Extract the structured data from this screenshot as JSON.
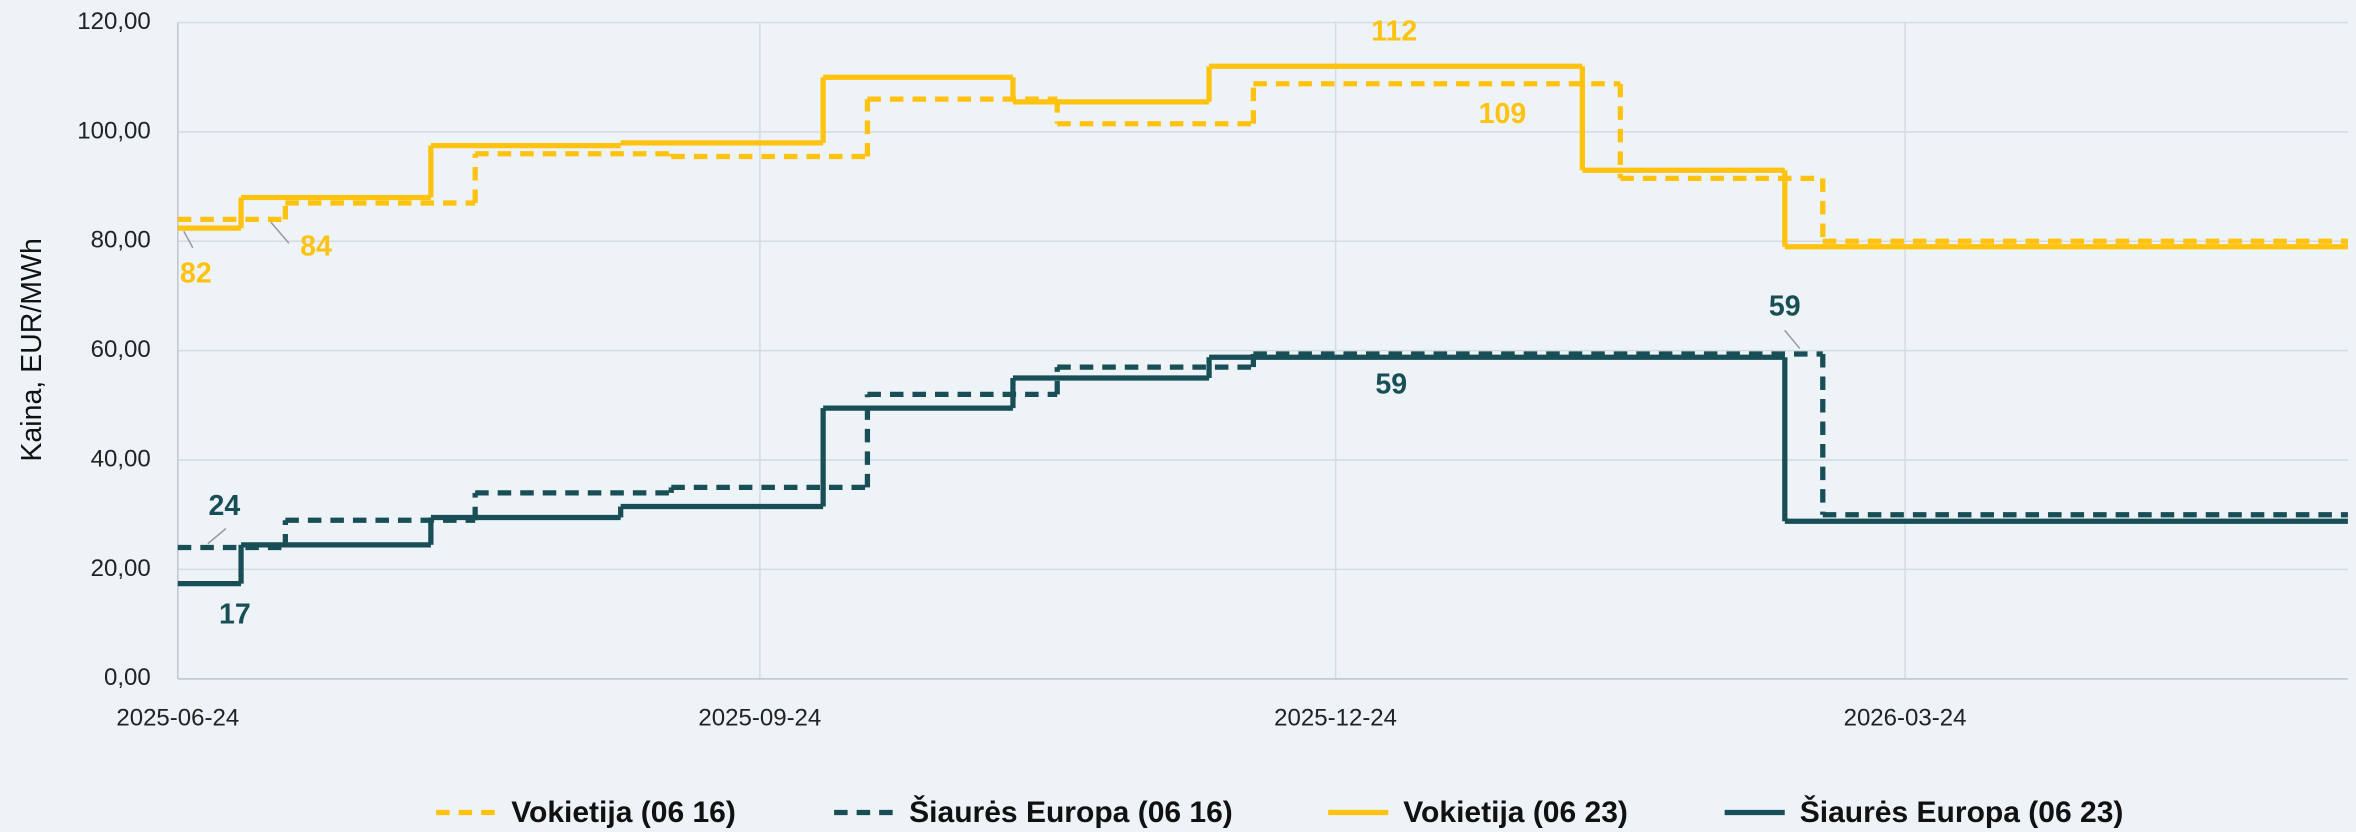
{
  "chart_data": {
    "type": "line",
    "step": "post",
    "y_label": "Kaina, EUR/MWh",
    "xlim": [
      "2025-06-24",
      "2026-06-02"
    ],
    "xticks": [
      "2025-06-24",
      "2025-09-24",
      "2025-12-24",
      "2026-03-24"
    ],
    "ylim": [
      0,
      120
    ],
    "yticks": [
      {
        "value": 0,
        "label": "0,00"
      },
      {
        "value": 20,
        "label": "20,00"
      },
      {
        "value": 40,
        "label": "40,00"
      },
      {
        "value": 60,
        "label": "60,00"
      },
      {
        "value": 80,
        "label": "80,00"
      },
      {
        "value": 100,
        "label": "100,00"
      },
      {
        "value": 120,
        "label": "120,00"
      }
    ],
    "grid": true,
    "legend": "bottom",
    "series": [
      {
        "name": "Vokietija (06 16)",
        "color": "#FFC20E",
        "dash": true,
        "x": [
          "2025-06-24",
          "2025-07-11",
          "2025-08-10",
          "2025-09-10",
          "2025-10-11",
          "2025-11-10",
          "2025-12-11",
          "2026-02-07",
          "2026-03-11"
        ],
        "values": [
          84,
          87,
          96,
          95.5,
          106,
          101.5,
          108.8,
          91.5,
          80
        ],
        "value_labels": [
          "84",
          null,
          null,
          null,
          null,
          null,
          "109",
          null,
          null
        ]
      },
      {
        "name": "Šiaurės Europa (06 16)",
        "color": "#184E55",
        "dash": true,
        "x": [
          "2025-06-24",
          "2025-07-11",
          "2025-08-10",
          "2025-09-10",
          "2025-10-11",
          "2025-11-10",
          "2025-12-11",
          "2026-03-11"
        ],
        "values": [
          24,
          29,
          34,
          35,
          52,
          57,
          59.4,
          30
        ],
        "value_labels": [
          "24",
          null,
          null,
          null,
          null,
          null,
          "59",
          null
        ]
      },
      {
        "name": "Vokietija (06 23)",
        "color": "#FFC20E",
        "dash": false,
        "x": [
          "2025-06-24",
          "2025-07-04",
          "2025-08-03",
          "2025-09-02",
          "2025-10-04",
          "2025-11-03",
          "2025-12-04",
          "2026-02-01",
          "2026-03-05"
        ],
        "values": [
          82.4,
          88,
          97.5,
          98,
          110,
          105.5,
          112,
          93,
          79
        ],
        "value_labels": [
          "82",
          null,
          null,
          null,
          null,
          null,
          "112",
          null,
          null
        ]
      },
      {
        "name": "Šiaurės Europa (06 23)",
        "color": "#184E55",
        "dash": false,
        "x": [
          "2025-06-24",
          "2025-07-04",
          "2025-08-03",
          "2025-09-02",
          "2025-10-04",
          "2025-11-03",
          "2025-12-04",
          "2026-03-05"
        ],
        "values": [
          17.4,
          24.5,
          29.5,
          31.5,
          49.5,
          55,
          58.8,
          28.8
        ],
        "value_labels": [
          "17",
          null,
          null,
          null,
          null,
          null,
          "59",
          null
        ]
      }
    ]
  }
}
